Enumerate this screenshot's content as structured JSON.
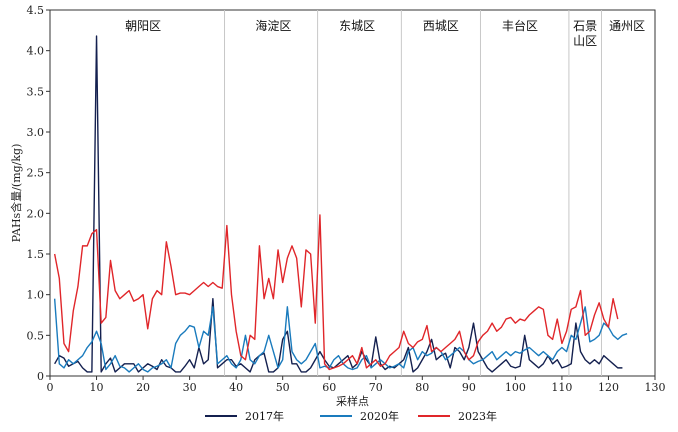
{
  "chart_data": {
    "type": "line",
    "title": "",
    "xlabel": "采样点",
    "ylabel": "PAHs含量/(mg/kg)",
    "xlim": [
      0,
      130
    ],
    "ylim": [
      0,
      4.5
    ],
    "x_ticks": [
      0,
      10,
      20,
      30,
      40,
      50,
      60,
      70,
      80,
      90,
      100,
      110,
      120,
      130
    ],
    "y_ticks": [
      "0",
      "0.5",
      "1.0",
      "1.5",
      "2.0",
      "2.5",
      "3.0",
      "3.5",
      "4.0",
      "4.5"
    ],
    "grid": false,
    "legend_position": "bottom",
    "district_dividers": [
      37.5,
      57.5,
      75.5,
      92.5,
      111.5,
      118.5
    ],
    "districts": [
      {
        "name": "朝阳区",
        "x": 20
      },
      {
        "name": "海淀区",
        "x": 48
      },
      {
        "name": "东城区",
        "x": 66
      },
      {
        "name": "西城区",
        "x": 84
      },
      {
        "name": "丰台区",
        "x": 101
      },
      {
        "name": "石景\n山区",
        "x": 115
      },
      {
        "name": "通州区",
        "x": 124
      }
    ],
    "series": [
      {
        "name": "2017年",
        "color": "#14204f",
        "values": [
          0.15,
          0.25,
          0.22,
          0.12,
          0.15,
          0.18,
          0.1,
          0.05,
          0.05,
          4.18,
          0.05,
          0.15,
          0.22,
          0.05,
          0.1,
          0.15,
          0.15,
          0.15,
          0.05,
          0.1,
          0.15,
          0.12,
          0.08,
          0.2,
          0.12,
          0.1,
          0.05,
          0.05,
          0.12,
          0.2,
          0.1,
          0.35,
          0.15,
          0.2,
          0.95,
          0.1,
          0.15,
          0.2,
          0.2,
          0.12,
          0.15,
          0.1,
          0.05,
          0.2,
          0.25,
          0.28,
          0.05,
          0.05,
          0.1,
          0.45,
          0.55,
          0.15,
          0.15,
          0.05,
          0.05,
          0.1,
          0.2,
          0.3,
          0.2,
          0.12,
          0.1,
          0.15,
          0.2,
          0.25,
          0.1,
          0.15,
          0.3,
          0.2,
          0.12,
          0.48,
          0.15,
          0.08,
          0.12,
          0.1,
          0.15,
          0.2,
          0.35,
          0.05,
          0.1,
          0.2,
          0.3,
          0.45,
          0.2,
          0.25,
          0.28,
          0.1,
          0.35,
          0.3,
          0.2,
          0.35,
          0.65,
          0.3,
          0.2,
          0.1,
          0.05,
          0.1,
          0.15,
          0.2,
          0.12,
          0.1,
          0.12,
          0.5,
          0.2,
          0.15,
          0.1,
          0.15,
          0.25,
          0.15,
          0.2,
          0.1,
          0.12,
          0.15,
          0.65,
          0.3,
          0.2,
          0.15,
          0.2,
          0.15,
          0.25,
          0.2,
          0.15,
          0.1,
          0.1
        ]
      },
      {
        "name": "2020年",
        "color": "#1a7bbd",
        "values": [
          0.95,
          0.15,
          0.1,
          0.2,
          0.15,
          0.2,
          0.25,
          0.35,
          0.42,
          0.55,
          0.4,
          0.08,
          0.15,
          0.25,
          0.12,
          0.1,
          0.05,
          0.1,
          0.15,
          0.08,
          0.05,
          0.1,
          0.12,
          0.15,
          0.2,
          0.1,
          0.4,
          0.5,
          0.55,
          0.62,
          0.6,
          0.35,
          0.55,
          0.5,
          0.85,
          0.15,
          0.2,
          0.25,
          0.15,
          0.1,
          0.2,
          0.5,
          0.2,
          0.15,
          0.25,
          0.3,
          0.5,
          0.3,
          0.1,
          0.2,
          0.85,
          0.3,
          0.2,
          0.15,
          0.2,
          0.3,
          0.4,
          0.1,
          0.12,
          0.1,
          0.2,
          0.25,
          0.15,
          0.1,
          0.08,
          0.1,
          0.2,
          0.25,
          0.1,
          0.15,
          0.2,
          0.15,
          0.1,
          0.12,
          0.15,
          0.1,
          0.3,
          0.35,
          0.2,
          0.3,
          0.25,
          0.28,
          0.35,
          0.3,
          0.2,
          0.25,
          0.3,
          0.35,
          0.3,
          0.2,
          0.15,
          0.18,
          0.2,
          0.25,
          0.3,
          0.2,
          0.25,
          0.3,
          0.25,
          0.3,
          0.28,
          0.32,
          0.35,
          0.3,
          0.25,
          0.3,
          0.25,
          0.2,
          0.3,
          0.35,
          0.3,
          0.5,
          0.45,
          0.65,
          0.85,
          0.42,
          0.45,
          0.5,
          0.65,
          0.6,
          0.5,
          0.45,
          0.5,
          0.52
        ]
      },
      {
        "name": "2023年",
        "color": "#e0262a",
        "values": [
          1.5,
          1.2,
          0.4,
          0.3,
          0.8,
          1.1,
          1.6,
          1.6,
          1.75,
          1.8,
          0.65,
          0.72,
          1.42,
          1.05,
          0.95,
          1.0,
          1.05,
          0.92,
          0.95,
          1.0,
          0.58,
          0.95,
          1.05,
          1.0,
          1.65,
          1.35,
          1.0,
          1.02,
          1.02,
          1.0,
          1.05,
          1.1,
          1.15,
          1.1,
          1.15,
          1.1,
          1.08,
          1.85,
          1.0,
          0.55,
          0.25,
          0.2,
          0.5,
          0.45,
          1.6,
          0.95,
          1.2,
          0.95,
          1.55,
          1.15,
          1.45,
          1.6,
          1.45,
          0.85,
          1.55,
          1.5,
          0.65,
          1.98,
          0.15,
          0.08,
          0.1,
          0.12,
          0.15,
          0.2,
          0.25,
          0.15,
          0.35,
          0.1,
          0.15,
          0.2,
          0.12,
          0.15,
          0.25,
          0.3,
          0.35,
          0.55,
          0.4,
          0.35,
          0.42,
          0.45,
          0.62,
          0.3,
          0.35,
          0.3,
          0.35,
          0.4,
          0.45,
          0.55,
          0.3,
          0.2,
          0.25,
          0.42,
          0.5,
          0.55,
          0.65,
          0.55,
          0.6,
          0.7,
          0.72,
          0.65,
          0.7,
          0.68,
          0.75,
          0.8,
          0.85,
          0.82,
          0.5,
          0.45,
          0.7,
          0.4,
          0.55,
          0.82,
          0.85,
          1.05,
          0.5,
          0.55,
          0.75,
          0.9,
          0.7,
          0.6,
          0.95,
          0.7
        ]
      }
    ]
  }
}
